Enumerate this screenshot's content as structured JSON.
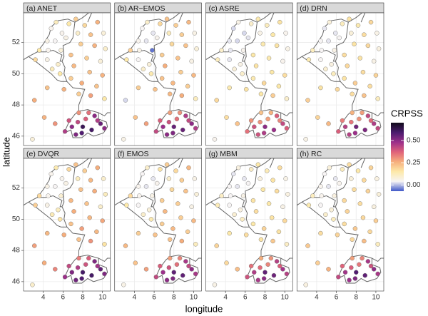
{
  "chart_data": {
    "type": "scatter",
    "xlabel": "longitude",
    "ylabel": "latitude",
    "xlim": [
      2.0,
      10.8
    ],
    "ylim": [
      45.4,
      53.9
    ],
    "xticks": [
      4,
      6,
      8,
      10
    ],
    "yticks": [
      46,
      48,
      50,
      52
    ],
    "grid": true,
    "x": [
      4.8,
      5.3,
      6.6,
      5.9,
      4.4,
      5.2,
      6.3,
      3.6,
      4.5,
      5.8,
      4.4,
      3.2,
      5.5,
      4.9,
      5.7,
      7.3,
      8.2,
      9.5,
      7.5,
      8.8,
      10.1,
      7.8,
      9.2,
      10.3,
      6.8,
      8.4,
      9.8,
      7.1,
      8.7,
      10.0,
      6.8,
      7.9,
      9.4,
      6.1,
      7.6,
      8.8,
      10.2,
      4.4,
      3.1,
      4.1,
      5.2,
      2.9,
      6.2,
      6.9,
      7.5,
      8.3,
      9.2,
      8.6,
      7.6,
      9.8,
      8.9,
      7.9,
      7.3,
      10.2,
      8.0,
      9.5,
      6.6
    ],
    "y": [
      52.9,
      53.3,
      53.2,
      52.6,
      52.1,
      52.1,
      52.3,
      51.5,
      51.5,
      51.5,
      50.9,
      50.9,
      50.6,
      50.3,
      50.0,
      53.5,
      53.1,
      53.3,
      52.6,
      52.5,
      52.6,
      51.9,
      51.8,
      51.6,
      51.2,
      51.0,
      50.8,
      50.5,
      50.1,
      49.9,
      49.7,
      49.4,
      49.2,
      49.0,
      48.7,
      48.6,
      48.4,
      49.1,
      48.3,
      47.2,
      46.8,
      45.8,
      46.3,
      46.6,
      46.9,
      47.1,
      47.3,
      47.5,
      47.5,
      46.8,
      46.4,
      46.2,
      46.1,
      46.5,
      46.6,
      47.0,
      47.0
    ],
    "color_title": "CRPSS",
    "colorlim": [
      -0.07,
      0.7
    ],
    "colorticks": [
      {
        "value": 0,
        "label": "0.00"
      },
      {
        "value": 0.25,
        "label": "0.25"
      },
      {
        "value": 0.5,
        "label": "0.50"
      }
    ],
    "colorscale": [
      "#4058c8",
      "#f7f4f4",
      "#fde9a9",
      "#f6ae7c",
      "#e0637a",
      "#9c2f8a",
      "#4a1b6e",
      "#100b1a"
    ],
    "panels": [
      {
        "title": "(a) ANET",
        "values": [
          0.05,
          0.12,
          0.15,
          0.05,
          0.06,
          0.04,
          0.06,
          0.15,
          0.05,
          0.08,
          0.06,
          0.18,
          0.1,
          0.12,
          0.15,
          0.2,
          0.18,
          0.25,
          0.1,
          0.22,
          0.08,
          0.2,
          0.25,
          0.1,
          0.22,
          0.2,
          0.08,
          0.24,
          0.22,
          0.25,
          0.2,
          0.26,
          0.22,
          0.25,
          0.2,
          0.28,
          0.15,
          0.22,
          0.26,
          0.25,
          0.3,
          0.08,
          0.45,
          0.5,
          0.42,
          0.38,
          0.5,
          0.35,
          0.3,
          0.55,
          0.6,
          0.58,
          0.52,
          0.5,
          0.62,
          0.45,
          0.4
        ]
      },
      {
        "title": "(b) AR−EMOS",
        "values": [
          0.04,
          0.1,
          0.18,
          0.03,
          0.05,
          0.03,
          0.05,
          0.2,
          0.06,
          -0.05,
          0.04,
          0.15,
          0.08,
          0.1,
          0.14,
          0.22,
          0.2,
          0.24,
          0.12,
          0.2,
          0.06,
          0.18,
          0.22,
          0.08,
          0.2,
          0.22,
          0.06,
          0.26,
          0.2,
          0.24,
          0.22,
          0.24,
          0.2,
          0.22,
          0.24,
          0.26,
          0.12,
          0.2,
          0.02,
          0.22,
          0.28,
          0.06,
          0.42,
          0.48,
          0.4,
          0.35,
          0.45,
          0.3,
          0.28,
          0.5,
          0.55,
          0.52,
          0.5,
          0.45,
          0.55,
          0.42,
          0.38
        ]
      },
      {
        "title": "(c) ASRE",
        "values": [
          0.02,
          0.06,
          0.1,
          0.02,
          0.03,
          0.02,
          0.03,
          0.1,
          0.03,
          0.05,
          0.03,
          0.12,
          0.06,
          0.08,
          0.1,
          0.14,
          0.12,
          0.16,
          0.06,
          0.15,
          0.05,
          0.14,
          0.16,
          0.06,
          0.15,
          0.14,
          0.05,
          0.16,
          0.15,
          0.17,
          0.14,
          0.18,
          0.15,
          0.16,
          0.15,
          0.2,
          0.1,
          0.14,
          0.18,
          0.17,
          0.22,
          0.05,
          0.35,
          0.4,
          0.3,
          0.28,
          0.38,
          0.25,
          0.22,
          0.42,
          0.48,
          0.45,
          0.4,
          0.38,
          0.5,
          0.32,
          0.3
        ]
      },
      {
        "title": "(d) DRN",
        "values": [
          0.03,
          0.08,
          0.12,
          0.03,
          0.04,
          0.03,
          0.04,
          0.12,
          0.04,
          0.06,
          0.04,
          0.14,
          0.07,
          0.09,
          0.12,
          0.16,
          0.14,
          0.18,
          0.08,
          0.17,
          0.06,
          0.16,
          0.18,
          0.07,
          0.17,
          0.16,
          0.06,
          0.18,
          0.17,
          0.19,
          0.16,
          0.2,
          0.17,
          0.18,
          0.17,
          0.22,
          0.12,
          0.16,
          0.2,
          0.19,
          0.24,
          0.06,
          0.38,
          0.44,
          0.34,
          0.3,
          0.42,
          0.28,
          0.25,
          0.45,
          0.52,
          0.48,
          0.44,
          0.42,
          0.54,
          0.36,
          0.33
        ]
      },
      {
        "title": "(e) DVQR",
        "values": [
          0.05,
          0.14,
          0.18,
          0.05,
          0.06,
          0.04,
          0.06,
          0.18,
          0.05,
          0.09,
          0.06,
          0.2,
          0.12,
          0.13,
          0.16,
          0.22,
          0.2,
          0.26,
          0.12,
          0.24,
          0.1,
          0.22,
          0.26,
          0.12,
          0.24,
          0.22,
          0.1,
          0.26,
          0.24,
          0.27,
          0.22,
          0.28,
          0.24,
          0.26,
          0.22,
          0.3,
          0.16,
          0.24,
          0.28,
          0.26,
          0.32,
          0.1,
          0.48,
          0.52,
          0.45,
          0.4,
          0.52,
          0.38,
          0.33,
          0.56,
          0.6,
          0.58,
          0.54,
          0.52,
          0.6,
          0.47,
          0.42
        ]
      },
      {
        "title": "(f) EMOS",
        "values": [
          0.04,
          0.1,
          0.16,
          0.03,
          0.05,
          0.03,
          0.05,
          0.18,
          0.05,
          0.06,
          0.04,
          0.15,
          0.08,
          0.1,
          0.14,
          0.2,
          0.18,
          0.24,
          0.1,
          0.2,
          0.06,
          0.18,
          0.22,
          0.08,
          0.2,
          0.2,
          0.06,
          0.24,
          0.2,
          0.24,
          0.2,
          0.24,
          0.2,
          0.22,
          0.22,
          0.26,
          0.12,
          0.2,
          0.24,
          0.22,
          0.28,
          0.06,
          0.42,
          0.48,
          0.4,
          0.35,
          0.46,
          0.32,
          0.28,
          0.5,
          0.56,
          0.52,
          0.5,
          0.46,
          0.56,
          0.42,
          0.38
        ]
      },
      {
        "title": "(g) MBM",
        "values": [
          0.03,
          0.07,
          0.11,
          0.03,
          0.04,
          0.03,
          0.04,
          0.11,
          0.04,
          0.06,
          0.04,
          0.13,
          0.07,
          0.09,
          0.11,
          0.15,
          0.13,
          0.17,
          0.07,
          0.16,
          0.06,
          0.15,
          0.17,
          0.07,
          0.16,
          0.15,
          0.06,
          0.17,
          0.16,
          0.18,
          0.15,
          0.19,
          0.16,
          0.17,
          0.16,
          0.21,
          0.11,
          0.15,
          0.19,
          0.18,
          0.23,
          0.06,
          0.4,
          0.45,
          0.36,
          0.32,
          0.44,
          0.3,
          0.26,
          0.47,
          0.54,
          0.5,
          0.46,
          0.44,
          0.56,
          0.38,
          0.35
        ]
      },
      {
        "title": "(h) RC",
        "values": [
          0.04,
          0.08,
          0.12,
          0.03,
          0.05,
          0.03,
          0.05,
          0.12,
          0.05,
          0.07,
          0.04,
          0.14,
          0.08,
          0.1,
          0.12,
          0.17,
          0.15,
          0.19,
          0.08,
          0.18,
          0.07,
          0.17,
          0.19,
          0.08,
          0.18,
          0.17,
          0.07,
          0.19,
          0.18,
          0.2,
          0.17,
          0.21,
          0.18,
          0.19,
          0.18,
          0.23,
          0.12,
          0.17,
          0.21,
          0.2,
          0.25,
          0.07,
          0.42,
          0.47,
          0.38,
          0.34,
          0.46,
          0.32,
          0.28,
          0.5,
          0.56,
          0.52,
          0.48,
          0.46,
          0.58,
          0.4,
          0.37
        ]
      }
    ]
  }
}
